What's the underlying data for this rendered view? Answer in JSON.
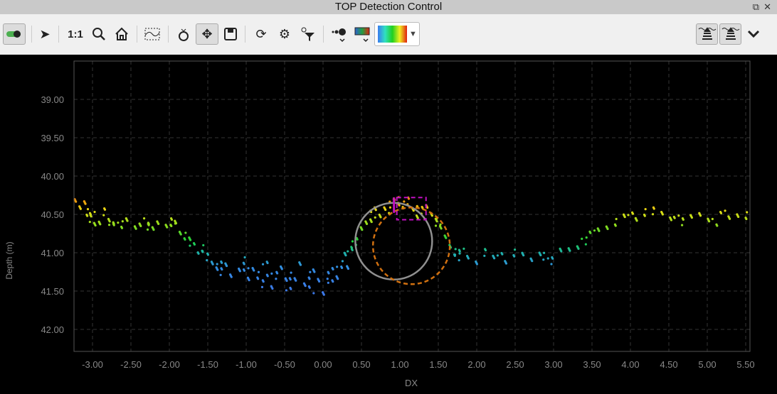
{
  "window": {
    "title": "TOP Detection Control",
    "restore_icon": "restore-icon",
    "close_icon": "close-icon"
  },
  "toolbar": {
    "zoom_1to1": "1:1",
    "items": [
      "toggle-icon",
      "pointer-icon",
      "zoom-1to1",
      "magnify-icon",
      "home-icon",
      "select-region-icon",
      "ring-icon",
      "pan-move-icon",
      "save-icon",
      "refresh-icon",
      "settings-icon",
      "filter-icon",
      "point-size-icon",
      "color-map-icon",
      "colormap-select",
      "sonar-icon",
      "sonar-icon-2",
      "chevron-down-icon"
    ],
    "colormap_colors": [
      "#3a7cf0",
      "#30e0c0",
      "#20d020",
      "#f0f020",
      "#e02010"
    ]
  },
  "chart_data": {
    "type": "scatter",
    "xlabel": "DX",
    "ylabel": "Depth (m)",
    "xlim": [
      -3.25,
      5.56
    ],
    "ylim": [
      38.5,
      42.8
    ],
    "y_inverted": true,
    "grid": true,
    "xticks": [
      "-3.00",
      "-2.50",
      "-2.00",
      "-1.50",
      "-1.00",
      "-0.50",
      "0.00",
      "0.50",
      "1.00",
      "1.50",
      "2.00",
      "2.50",
      "3.00",
      "3.50",
      "4.00",
      "4.50",
      "5.00",
      "5.50"
    ],
    "yticks": [
      "39.00",
      "39.50",
      "40.00",
      "40.50",
      "41.00",
      "41.50",
      "42.00"
    ],
    "colors": {
      "shallow": "#f0a010",
      "mid": "#20d040",
      "deep": "#3a90e0"
    },
    "circles": [
      {
        "dx": 0.92,
        "depth": 40.85,
        "r": 0.5,
        "color": "#909090",
        "style": "solid"
      },
      {
        "dx": 1.15,
        "depth": 40.91,
        "r": 0.5,
        "color": "#d07010",
        "style": "dashed"
      }
    ],
    "marker_box": {
      "dx": [
        0.96,
        1.34
      ],
      "depth": [
        40.28,
        40.57
      ],
      "color": "#c010c0"
    },
    "points": [
      [
        -3.2,
        40.35
      ],
      [
        -3.15,
        40.42
      ],
      [
        -3.1,
        40.33
      ],
      [
        -3.08,
        40.48
      ],
      [
        -3.05,
        40.55
      ],
      [
        -3.0,
        40.5
      ],
      [
        -2.95,
        40.62
      ],
      [
        -2.9,
        40.58
      ],
      [
        -2.85,
        40.47
      ],
      [
        -2.8,
        40.6
      ],
      [
        -2.75,
        40.62
      ],
      [
        -2.7,
        40.6
      ],
      [
        -2.6,
        40.63
      ],
      [
        -2.55,
        40.6
      ],
      [
        -2.45,
        40.68
      ],
      [
        -2.4,
        40.62
      ],
      [
        -2.3,
        40.6
      ],
      [
        -2.25,
        40.65
      ],
      [
        -2.2,
        40.7
      ],
      [
        -2.15,
        40.6
      ],
      [
        -2.05,
        40.62
      ],
      [
        -2.0,
        40.6
      ],
      [
        -1.95,
        40.66
      ],
      [
        -1.9,
        40.6
      ],
      [
        -1.85,
        40.72
      ],
      [
        -1.8,
        40.78
      ],
      [
        -1.75,
        40.85
      ],
      [
        -1.7,
        40.9
      ],
      [
        -1.6,
        40.98
      ],
      [
        -1.55,
        40.95
      ],
      [
        -1.5,
        41.05
      ],
      [
        -1.45,
        41.15
      ],
      [
        -1.4,
        41.2
      ],
      [
        -1.35,
        41.1
      ],
      [
        -1.3,
        41.25
      ],
      [
        -1.25,
        41.18
      ],
      [
        -1.2,
        41.3
      ],
      [
        -1.1,
        41.2
      ],
      [
        -1.05,
        41.1
      ],
      [
        -1.0,
        41.25
      ],
      [
        -0.95,
        41.35
      ],
      [
        -0.9,
        41.2
      ],
      [
        -0.85,
        41.3
      ],
      [
        -0.8,
        41.4
      ],
      [
        -0.75,
        41.15
      ],
      [
        -0.7,
        41.28
      ],
      [
        -0.65,
        41.42
      ],
      [
        -0.6,
        41.3
      ],
      [
        -0.55,
        41.22
      ],
      [
        -0.5,
        41.35
      ],
      [
        -0.45,
        41.45
      ],
      [
        -0.4,
        41.3
      ],
      [
        -0.35,
        41.38
      ],
      [
        -0.3,
        41.15
      ],
      [
        -0.25,
        41.4
      ],
      [
        -0.2,
        41.3
      ],
      [
        -0.15,
        41.48
      ],
      [
        -0.1,
        41.25
      ],
      [
        -0.05,
        41.35
      ],
      [
        0.0,
        41.5
      ],
      [
        0.05,
        41.3
      ],
      [
        0.1,
        41.4
      ],
      [
        0.15,
        41.2
      ],
      [
        0.2,
        41.3
      ],
      [
        0.25,
        41.15
      ],
      [
        0.28,
        41.05
      ],
      [
        0.3,
        41.2
      ],
      [
        0.35,
        40.95
      ],
      [
        0.4,
        40.9
      ],
      [
        0.45,
        40.85
      ],
      [
        0.5,
        40.7
      ],
      [
        0.55,
        40.6
      ],
      [
        0.6,
        40.55
      ],
      [
        0.65,
        40.5
      ],
      [
        0.7,
        40.45
      ],
      [
        0.75,
        40.52
      ],
      [
        0.8,
        40.4
      ],
      [
        0.85,
        40.45
      ],
      [
        0.9,
        40.35
      ],
      [
        0.95,
        40.3
      ],
      [
        1.0,
        40.35
      ],
      [
        1.05,
        40.38
      ],
      [
        1.1,
        40.32
      ],
      [
        1.15,
        40.45
      ],
      [
        1.2,
        40.4
      ],
      [
        1.25,
        40.5
      ],
      [
        1.3,
        40.45
      ],
      [
        1.35,
        40.42
      ],
      [
        1.4,
        40.5
      ],
      [
        1.45,
        40.55
      ],
      [
        1.5,
        40.6
      ],
      [
        1.55,
        40.7
      ],
      [
        1.6,
        40.8
      ],
      [
        1.65,
        40.9
      ],
      [
        1.7,
        41.0
      ],
      [
        1.75,
        41.05
      ],
      [
        1.8,
        40.98
      ],
      [
        1.9,
        41.05
      ],
      [
        2.0,
        41.1
      ],
      [
        2.1,
        41.0
      ],
      [
        2.2,
        41.08
      ],
      [
        2.3,
        41.02
      ],
      [
        2.4,
        41.1
      ],
      [
        2.5,
        41.0
      ],
      [
        2.6,
        41.05
      ],
      [
        2.7,
        41.1
      ],
      [
        2.8,
        41.0
      ],
      [
        2.9,
        41.05
      ],
      [
        3.0,
        41.1
      ],
      [
        3.1,
        40.98
      ],
      [
        3.2,
        40.95
      ],
      [
        3.3,
        40.9
      ],
      [
        3.4,
        40.85
      ],
      [
        3.5,
        40.75
      ],
      [
        3.6,
        40.7
      ],
      [
        3.7,
        40.65
      ],
      [
        3.8,
        40.6
      ],
      [
        3.9,
        40.55
      ],
      [
        4.0,
        40.5
      ],
      [
        4.1,
        40.55
      ],
      [
        4.2,
        40.48
      ],
      [
        4.3,
        40.45
      ],
      [
        4.4,
        40.5
      ],
      [
        4.5,
        40.55
      ],
      [
        4.6,
        40.5
      ],
      [
        4.7,
        40.6
      ],
      [
        4.8,
        40.55
      ],
      [
        4.9,
        40.5
      ],
      [
        5.0,
        40.55
      ],
      [
        5.1,
        40.6
      ],
      [
        5.2,
        40.5
      ],
      [
        5.3,
        40.55
      ],
      [
        5.4,
        40.5
      ],
      [
        5.5,
        40.52
      ]
    ]
  }
}
